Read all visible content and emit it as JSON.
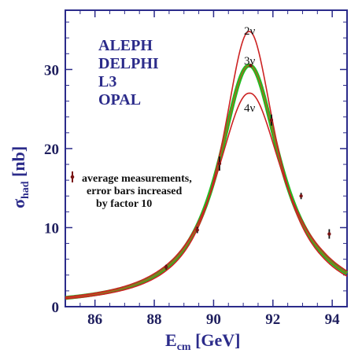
{
  "chart_data": {
    "type": "line",
    "xlabel_main": "E",
    "xlabel_sub": "cm",
    "xlabel_unit": " [GeV]",
    "ylabel_main": "σ",
    "ylabel_sub": "had",
    "ylabel_unit": " [nb]",
    "xlim": [
      85.0,
      94.5
    ],
    "ylim": [
      0,
      37.5
    ],
    "xticks": [
      86,
      88,
      90,
      92,
      94
    ],
    "yticks": [
      0,
      10,
      20,
      30
    ],
    "experiments": [
      "ALEPH",
      "DELPHI",
      "L3",
      "OPAL"
    ],
    "legend_text": [
      "average measurements,",
      "error bars increased",
      "by factor 10"
    ],
    "series": [
      {
        "name": "2ν",
        "color": "#cc2222",
        "peak": 34.8,
        "mass": 91.19,
        "width": 2.2
      },
      {
        "name": "3ν",
        "color": "#22bb22",
        "peak": 30.5,
        "mass": 91.19,
        "width": 2.495
      },
      {
        "name": "4ν",
        "color": "#cc2222",
        "peak": 27.0,
        "mass": 91.19,
        "width": 2.78
      }
    ],
    "measurements": [
      {
        "x": 88.4,
        "y": 5.0,
        "err": 0.3
      },
      {
        "x": 89.45,
        "y": 9.7,
        "err": 0.4
      },
      {
        "x": 90.2,
        "y": 18.1,
        "err": 0.9
      },
      {
        "x": 91.25,
        "y": 30.5,
        "err": 0.2
      },
      {
        "x": 91.95,
        "y": 23.6,
        "err": 0.7
      },
      {
        "x": 92.95,
        "y": 14.0,
        "err": 0.4
      },
      {
        "x": 93.9,
        "y": 9.2,
        "err": 0.6
      }
    ]
  }
}
